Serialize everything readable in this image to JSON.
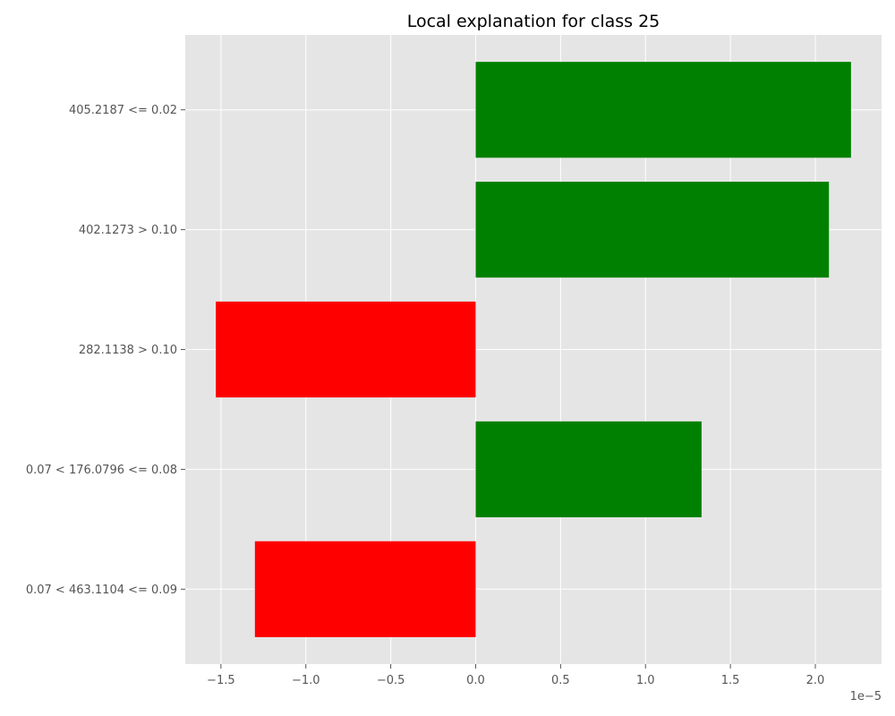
{
  "chart_data": {
    "type": "bar",
    "orientation": "horizontal",
    "title": "Local explanation for class 25",
    "xlabel": "",
    "ylabel": "",
    "x_offset_label": "1e−5",
    "x_scale_exponent": -5,
    "xlim": [
      -1.71,
      2.39
    ],
    "xticks": [
      -1.5,
      -1.0,
      -0.5,
      0.0,
      0.5,
      1.0,
      1.5,
      2.0
    ],
    "xtick_labels": [
      "−1.5",
      "−1.0",
      "−0.5",
      "0.0",
      "0.5",
      "1.0",
      "1.5",
      "2.0"
    ],
    "categories": [
      "405.2187 <= 0.02",
      "402.1273 > 0.10",
      "282.1138 > 0.10",
      "0.07 < 176.0796 <= 0.08",
      "0.07 < 463.1104 <= 0.09"
    ],
    "values": [
      2.21,
      2.08,
      -1.53,
      1.33,
      -1.3
    ],
    "colors": {
      "positive": "#008000",
      "negative": "#ff0000",
      "plot_background": "#e5e5e5",
      "grid": "#ffffff"
    },
    "grid": true,
    "legend": "none"
  }
}
